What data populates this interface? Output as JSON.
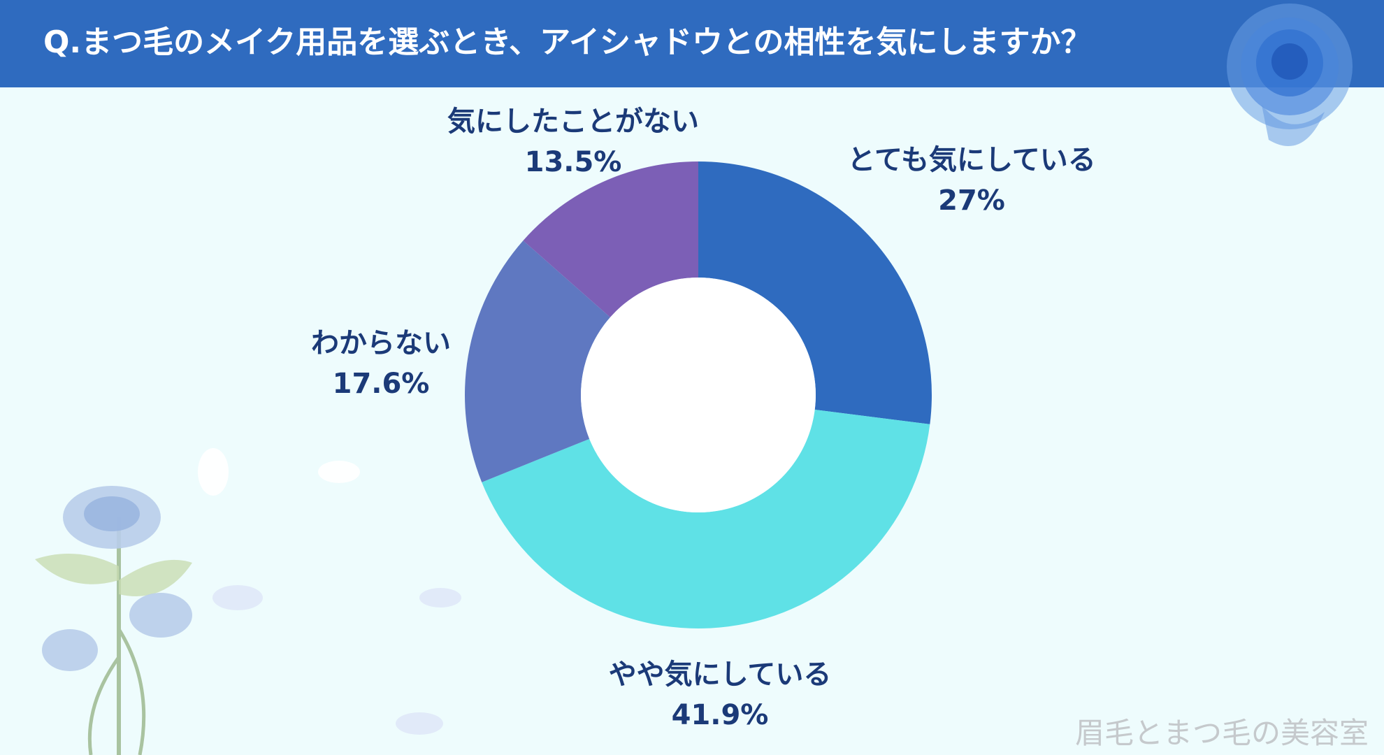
{
  "header": {
    "title": "Q.まつ毛のメイク用品を選ぶとき、アイシャドウとの相性を気にしますか？"
  },
  "chart_data": {
    "type": "pie",
    "donut": true,
    "labels": [
      "とても気にしている",
      "やや気にしている",
      "わからない",
      "気にしたことがない"
    ],
    "values": [
      27,
      41.9,
      17.6,
      13.5
    ],
    "value_labels": [
      "27%",
      "41.9%",
      "17.6%",
      "13.5%"
    ],
    "colors": [
      "#2f6bbf",
      "#5fe1e6",
      "#5f78c1",
      "#7c5fb6"
    ],
    "start_angle_deg": 0,
    "direction": "clockwise",
    "legend": "none"
  },
  "watermark": "眉毛とまつ毛の美容室"
}
